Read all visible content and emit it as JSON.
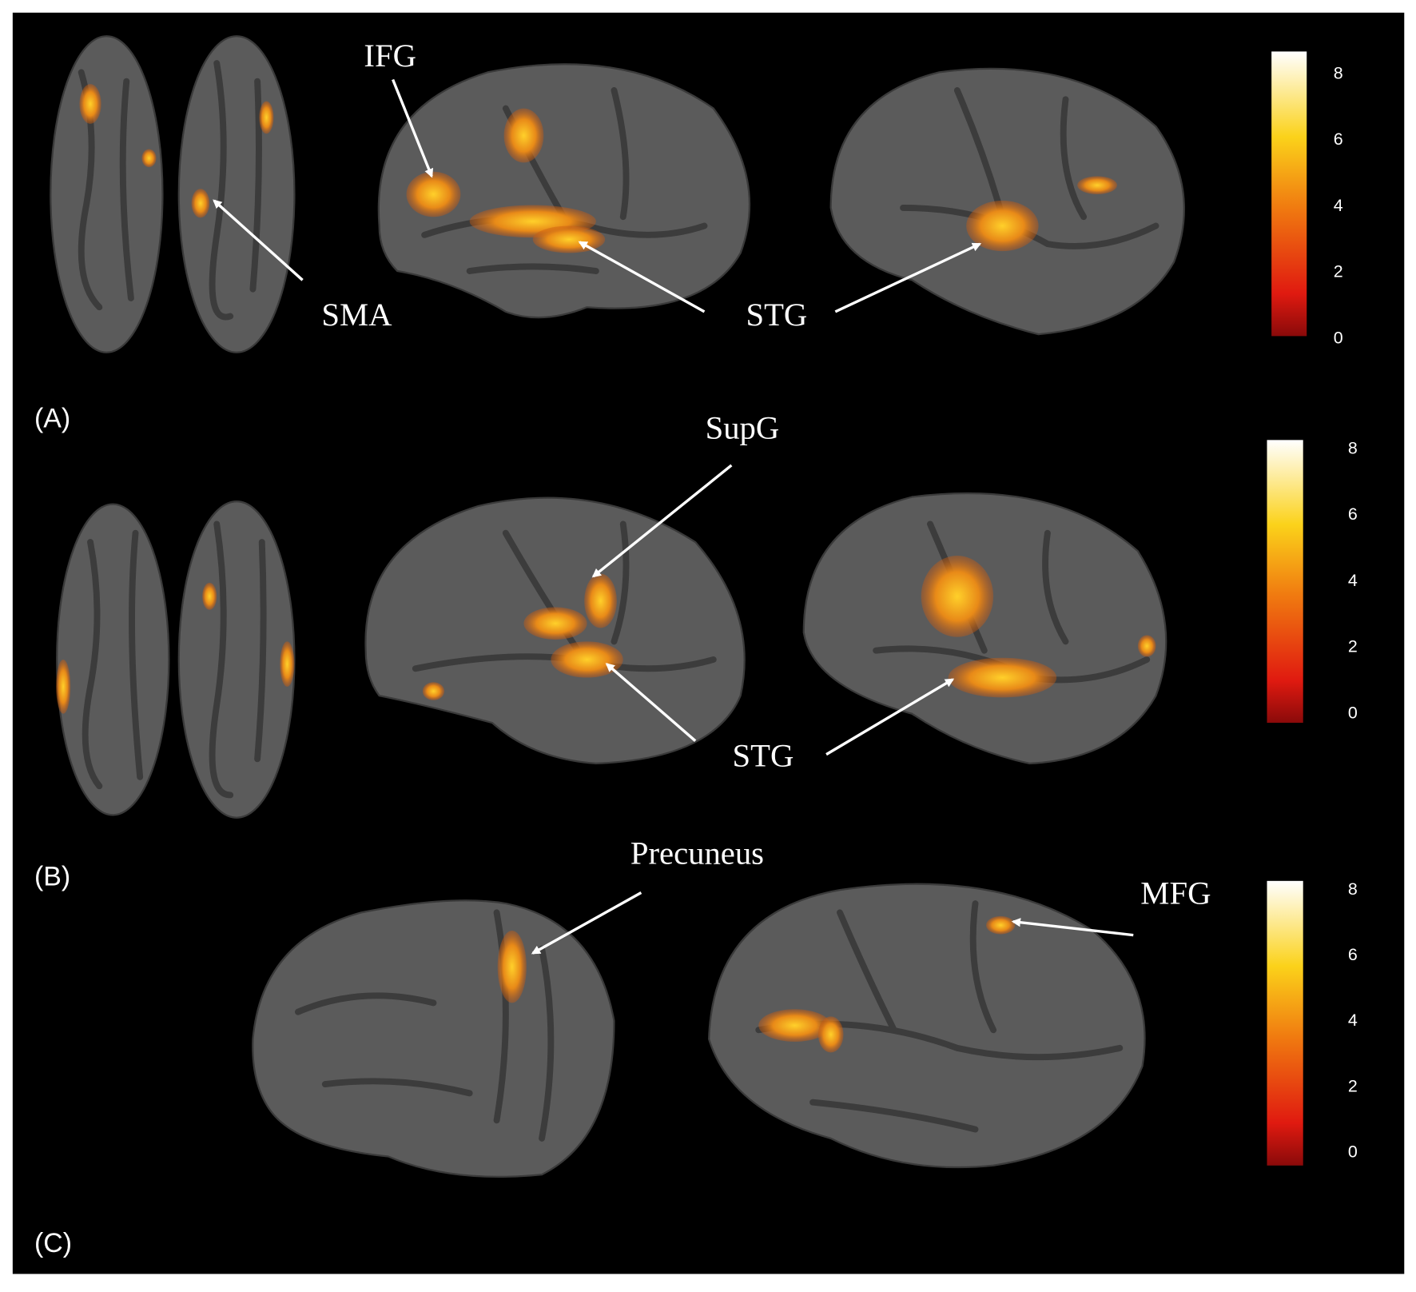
{
  "figure": {
    "panels": [
      {
        "label": "(A)",
        "annotations": [
          "IFG",
          "SMA",
          "STG"
        ],
        "colorbar_ticks": [
          8,
          6,
          4,
          2,
          0
        ]
      },
      {
        "label": "(B)",
        "annotations": [
          "SupG",
          "STG"
        ],
        "colorbar_ticks": [
          8,
          6,
          4,
          2,
          0
        ]
      },
      {
        "label": "(C)",
        "annotations": [
          "Precuneus",
          "MFG"
        ],
        "colorbar_ticks": [
          8,
          6,
          4,
          2,
          0
        ]
      }
    ]
  }
}
